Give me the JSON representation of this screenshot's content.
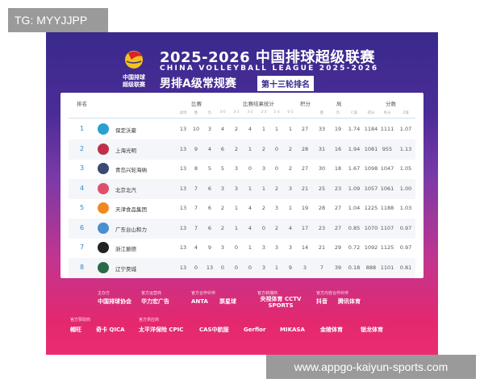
{
  "watermark": "TG: MYYJJPP",
  "url_banner": "www.appgo-kaiyun-sports.com",
  "header": {
    "title": "2025-2026 中国排球超级联赛",
    "subtitle": "CHINA VOLLEYBALL LEAGUE 2025-2026",
    "logo_text": "中国排球超级联赛",
    "section": "男排A级常规赛",
    "round": "第十三轮排名"
  },
  "table": {
    "groups": {
      "rank": "排名",
      "matches": "比赛",
      "results": "比赛结果统计",
      "points": "积分",
      "sets": "局",
      "scores": "分数"
    },
    "columns": [
      "总场",
      "胜",
      "负",
      "3-0",
      "3-1",
      "3-2",
      "2-3",
      "1-3",
      "0-3",
      "",
      "胜",
      "负",
      "C值",
      "得分",
      "失分",
      "Z值"
    ],
    "rows": [
      {
        "rank": "1",
        "team": "保定沃豪",
        "color": "#2aa0d0",
        "v": [
          "13",
          "10",
          "3",
          "4",
          "2",
          "4",
          "1",
          "1",
          "1",
          "27",
          "33",
          "19",
          "1.74",
          "1184",
          "1111",
          "1.07"
        ]
      },
      {
        "rank": "2",
        "team": "上海光明",
        "color": "#c0304a",
        "v": [
          "13",
          "9",
          "4",
          "6",
          "2",
          "1",
          "2",
          "0",
          "2",
          "28",
          "31",
          "16",
          "1.94",
          "1081",
          "955",
          "1.13"
        ]
      },
      {
        "rank": "3",
        "team": "青岛兴轮海纳",
        "color": "#3a4a70",
        "v": [
          "13",
          "8",
          "5",
          "5",
          "3",
          "0",
          "3",
          "0",
          "2",
          "27",
          "30",
          "18",
          "1.67",
          "1098",
          "1047",
          "1.05"
        ]
      },
      {
        "rank": "4",
        "team": "北京北汽",
        "color": "#e0506a",
        "v": [
          "13",
          "7",
          "6",
          "3",
          "3",
          "1",
          "1",
          "2",
          "3",
          "21",
          "25",
          "23",
          "1.09",
          "1057",
          "1061",
          "1.00"
        ]
      },
      {
        "rank": "5",
        "team": "天津食品集团",
        "color": "#f08a20",
        "v": [
          "13",
          "7",
          "6",
          "2",
          "1",
          "4",
          "2",
          "3",
          "1",
          "19",
          "28",
          "27",
          "1.04",
          "1225",
          "1188",
          "1.03"
        ]
      },
      {
        "rank": "6",
        "team": "广东台山和力",
        "color": "#4a90d0",
        "v": [
          "13",
          "7",
          "6",
          "2",
          "1",
          "4",
          "0",
          "2",
          "4",
          "17",
          "23",
          "27",
          "0.85",
          "1070",
          "1107",
          "0.97"
        ]
      },
      {
        "rank": "7",
        "team": "浙江振德",
        "color": "#222222",
        "v": [
          "13",
          "4",
          "9",
          "3",
          "0",
          "1",
          "3",
          "3",
          "3",
          "14",
          "21",
          "29",
          "0.72",
          "1092",
          "1125",
          "0.97"
        ]
      },
      {
        "rank": "8",
        "team": "辽宁昊城",
        "color": "#2a6a4a",
        "v": [
          "13",
          "0",
          "13",
          "0",
          "0",
          "0",
          "3",
          "1",
          "9",
          "3",
          "7",
          "39",
          "0.18",
          "888",
          "1101",
          "0.81"
        ]
      }
    ]
  },
  "sponsors": {
    "labels": [
      "主办方",
      "官方运营商",
      "官方合作伙伴",
      "官方转播商",
      "官方内容合作伙伴",
      "官方赞助商",
      "官方供应商"
    ],
    "row1": [
      "中国排球协会",
      "华力宏广告",
      "ANTA",
      "票星球",
      "央视体育 CCTV SPORTS",
      "抖音",
      "腾讯体育"
    ],
    "row2": [
      "帽旺",
      "奇卡 QICA",
      "太平洋保险 CPIC",
      "CAS中航服",
      "Gerflor",
      "MIKASA",
      "金陵体育",
      "银龙体育"
    ]
  }
}
